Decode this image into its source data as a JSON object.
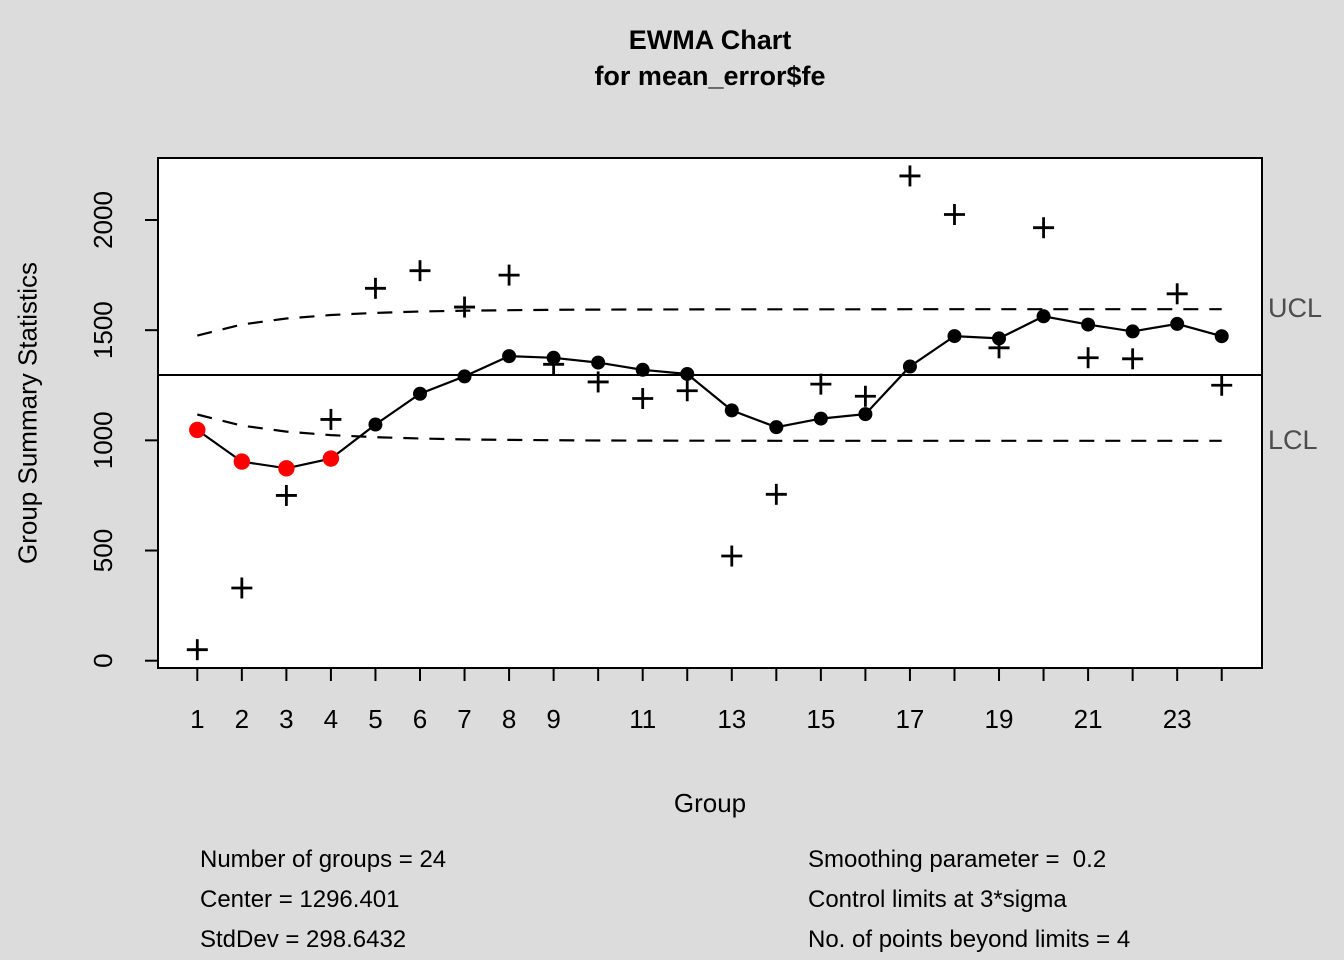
{
  "chart": {
    "title": "EWMA Chart",
    "subtitle": "for mean_error$fe",
    "xlabel": "Group",
    "ylabel": "Group Summary Statistics",
    "limit_labels": {
      "ucl": "UCL",
      "lcl": "LCL"
    }
  },
  "chart_data": {
    "type": "line",
    "control_chart_type": "EWMA",
    "x": [
      1,
      2,
      3,
      4,
      5,
      6,
      7,
      8,
      9,
      10,
      11,
      12,
      13,
      14,
      15,
      16,
      17,
      18,
      19,
      20,
      21,
      22,
      23,
      24
    ],
    "x_tick_labels": [
      "1",
      "2",
      "3",
      "4",
      "5",
      "6",
      "7",
      "8",
      "9",
      "",
      "11",
      "",
      "13",
      "",
      "15",
      "",
      "17",
      "",
      "19",
      "",
      "21",
      "",
      "23",
      ""
    ],
    "y_ticks": [
      0,
      500,
      1000,
      1500,
      2000
    ],
    "ylim": [
      -35,
      2280
    ],
    "grid": false,
    "legend_position": "none",
    "series": [
      {
        "name": "group summary statistics",
        "marker": "plus",
        "values": [
          50,
          330,
          750,
          1095,
          1690,
          1770,
          1605,
          1750,
          1345,
          1265,
          1190,
          1225,
          475,
          755,
          1255,
          1200,
          2200,
          2025,
          1420,
          1965,
          1375,
          1370,
          1665,
          1250
        ]
      },
      {
        "name": "EWMA",
        "marker": "dot-line",
        "values": [
          1047.1,
          903.7,
          873.0,
          917.4,
          1071.9,
          1211.5,
          1290.2,
          1382.2,
          1374.8,
          1352.8,
          1320.2,
          1301.2,
          1136.0,
          1059.8,
          1098.8,
          1119.0,
          1335.2,
          1473.2,
          1462.6,
          1563.0,
          1525.4,
          1494.3,
          1528.4,
          1472.7
        ],
        "beyond_limit_groups": [
          1,
          2,
          3,
          4
        ]
      }
    ],
    "center": 1296.401,
    "ucl": [
      1475.6,
      1525.9,
      1552.9,
      1568.8,
      1578.6,
      1584.6,
      1588.4,
      1590.8,
      1592.3,
      1593.3,
      1593.9,
      1594.3,
      1594.6,
      1594.8,
      1594.9,
      1594.9,
      1595.0,
      1595.0,
      1595.0,
      1595.0,
      1595.0,
      1595.0,
      1595.0,
      1595.0
    ],
    "lcl": [
      1117.2,
      1066.9,
      1039.9,
      1024.0,
      1014.3,
      1008.2,
      1004.4,
      1002.0,
      1000.5,
      999.5,
      998.9,
      998.5,
      998.2,
      998.1,
      998.0,
      997.9,
      997.8,
      997.8,
      997.8,
      997.8,
      997.8,
      997.8,
      997.8,
      997.8
    ]
  },
  "stats": {
    "left": [
      "Number of groups = 24",
      "Center = 1296.401",
      "StdDev = 298.6432"
    ],
    "right": [
      "Smoothing parameter =  0.2",
      "Control limits at 3*sigma",
      "No. of points beyond limits = 4"
    ]
  },
  "colors": {
    "background": "#dcdcdc",
    "plot_background": "#ffffff",
    "series": "#000000",
    "beyond_limits": "#ff0000",
    "limit_label": "#4d4d4d"
  }
}
